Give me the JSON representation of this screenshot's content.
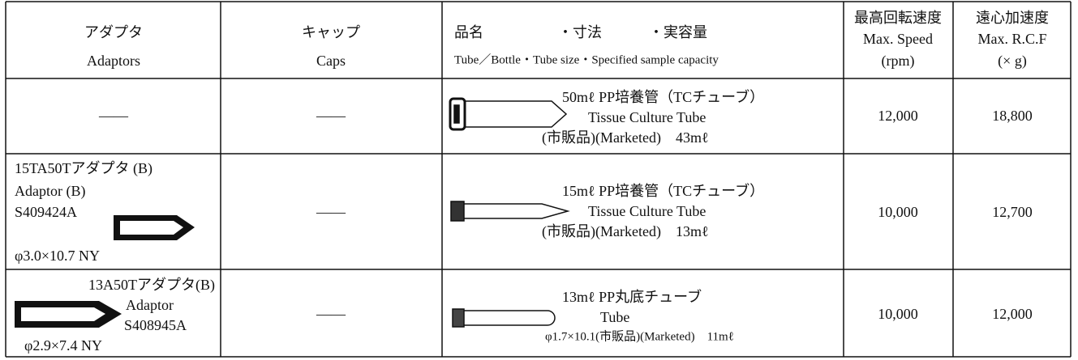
{
  "table": {
    "header": [
      {
        "ja": "アダプタ",
        "en": "Adaptors"
      },
      {
        "ja": "キャップ",
        "en": "Caps"
      },
      {
        "ja": [
          "品名",
          "・寸法",
          "・実容量"
        ],
        "en": "Tube／Bottle・Tube size・Specified sample capacity"
      },
      {
        "ja": "最高回転速度",
        "en": "Max. Speed",
        "unit": "(rpm)"
      },
      {
        "ja": "遠心加速度",
        "en": "Max. R.C.F",
        "unit": "(× g)"
      }
    ],
    "rows": [
      {
        "adaptor": [
          "——"
        ],
        "cap": "——",
        "tube": [
          "50mℓ PP培養管（TCチューブ）",
          "Tissue Culture Tube",
          "(市販品)(Marketed)　43mℓ"
        ],
        "speed": "12,000",
        "rcf": "18,800"
      },
      {
        "adaptor": [
          "15TA50Tアダプタ (B)",
          "Adaptor (B)",
          "S409424A",
          "φ3.0×10.7  NY"
        ],
        "cap": "——",
        "tube": [
          "15mℓ PP培養管（TCチューブ）",
          "Tissue Culture Tube",
          "(市販品)(Marketed)　13mℓ"
        ],
        "speed": "10,000",
        "rcf": "12,700"
      },
      {
        "adaptor": [
          "13A50Tアダプタ(B)",
          "Adaptor",
          "S408945A",
          "φ2.9×7.4  NY"
        ],
        "cap": "——",
        "tube": [
          "13mℓ PP丸底チューブ",
          "Tube",
          "φ1.7×10.1(市販品)(Marketed)　11mℓ"
        ],
        "speed": "10,000",
        "rcf": "12,000"
      }
    ]
  }
}
